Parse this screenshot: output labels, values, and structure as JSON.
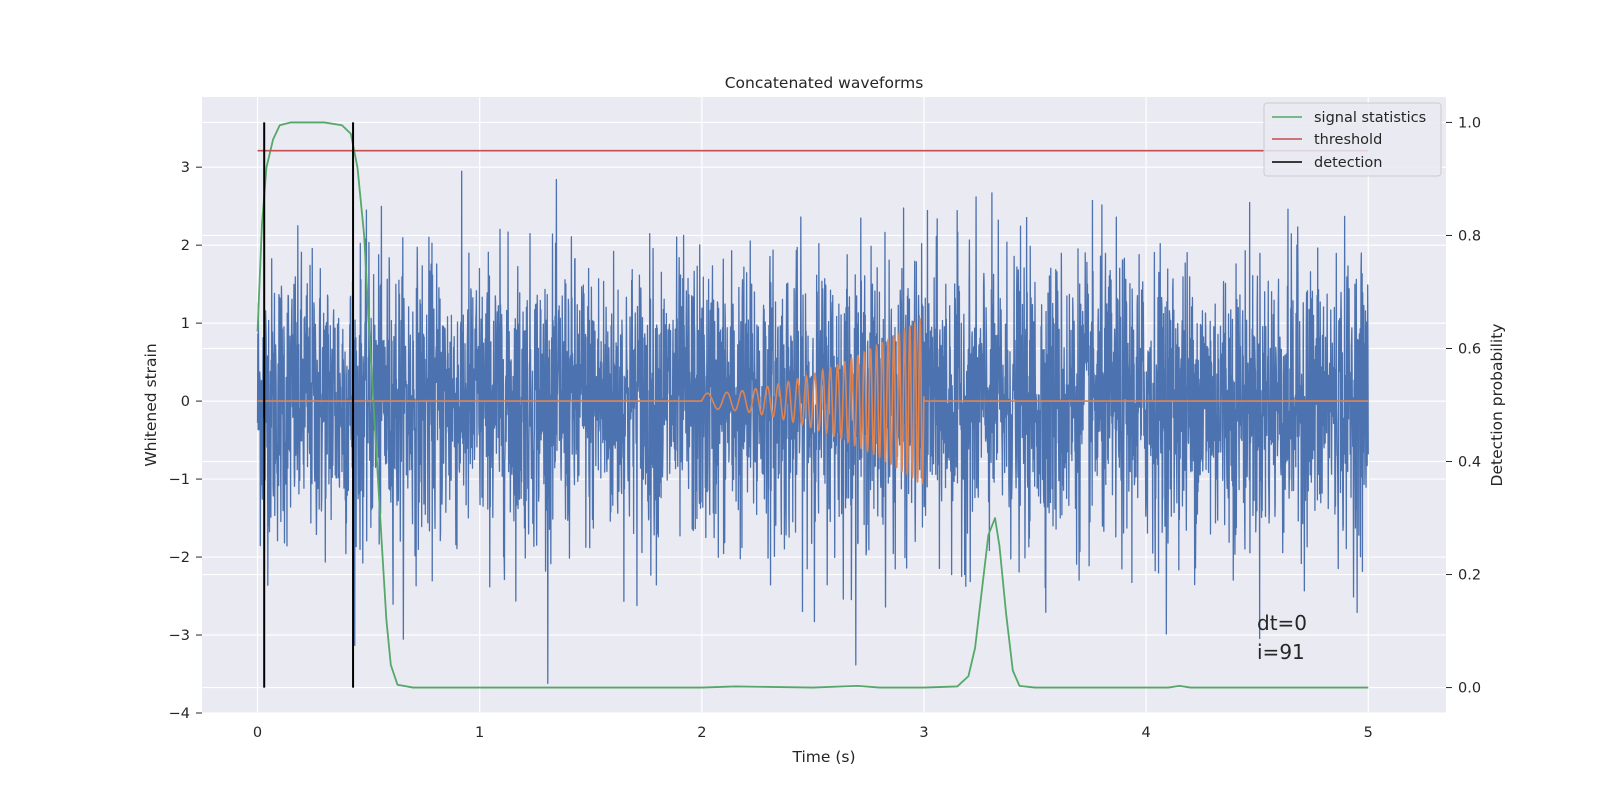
{
  "chart_data": {
    "type": "line",
    "title": "Concatenated waveforms",
    "xlabel": "Time (s)",
    "ylabel": "Whitened strain",
    "y2label": "Detection probability",
    "xlim": [
      -0.25,
      5.35
    ],
    "ylim": [
      -4.0,
      3.9
    ],
    "y2lim": [
      -0.045,
      1.045
    ],
    "xticks": [
      0,
      1,
      2,
      3,
      4,
      5
    ],
    "yticks": [
      3,
      2,
      1,
      0,
      -1,
      -2,
      -3,
      -4
    ],
    "y2ticks": [
      1.0,
      0.8,
      0.6,
      0.4,
      0.2,
      0.0
    ],
    "grid": true,
    "legend_position": "top-right",
    "series": [
      {
        "name": "",
        "kind": "whitened-strain-noise",
        "color": "#4c72b0",
        "x_start": 0.0,
        "x_end": 5.0,
        "std": 0.9
      },
      {
        "name": "",
        "kind": "injected-chirp",
        "color": "#dd8452",
        "x_start": 2.0,
        "x_end": 3.0,
        "start_amplitude": 0.1,
        "end_amplitude": 1.1,
        "start_cycles_per_s": 9,
        "end_cycles_per_s": 45
      },
      {
        "name": "signal statistics",
        "axis": "y2",
        "color": "#55a868",
        "x": [
          0.0,
          0.02,
          0.04,
          0.07,
          0.1,
          0.15,
          0.2,
          0.3,
          0.38,
          0.42,
          0.45,
          0.48,
          0.5,
          0.53,
          0.56,
          0.58,
          0.6,
          0.63,
          0.7,
          1.0,
          2.0,
          2.15,
          2.5,
          2.7,
          2.8,
          3.0,
          3.15,
          3.2,
          3.23,
          3.26,
          3.29,
          3.32,
          3.34,
          3.37,
          3.4,
          3.43,
          3.5,
          4.1,
          4.15,
          4.2,
          5.0
        ],
        "y": [
          0.63,
          0.82,
          0.92,
          0.97,
          0.995,
          1.0,
          1.0,
          1.0,
          0.995,
          0.98,
          0.92,
          0.8,
          0.65,
          0.45,
          0.25,
          0.12,
          0.04,
          0.005,
          0.0,
          0.0,
          0.0,
          0.002,
          0.0,
          0.003,
          0.0,
          0.0,
          0.002,
          0.02,
          0.07,
          0.17,
          0.27,
          0.3,
          0.25,
          0.13,
          0.03,
          0.003,
          0.0,
          0.0,
          0.003,
          0.0,
          0.0
        ]
      },
      {
        "name": "threshold",
        "axis": "y2",
        "color": "#c44e52",
        "x": [
          0.0,
          5.0
        ],
        "y": [
          0.95,
          0.95
        ]
      }
    ],
    "detections": {
      "name": "detection",
      "color": "#000000",
      "x": [
        0.03,
        0.43
      ],
      "y2_range": [
        0.0,
        1.0
      ]
    },
    "legend": [
      {
        "label": "signal statistics",
        "color": "#55a868"
      },
      {
        "label": "threshold",
        "color": "#c44e52"
      },
      {
        "label": "detection",
        "color": "#000000"
      }
    ],
    "annotations": [
      {
        "text": "dt=0",
        "x": 4.5,
        "y": -2.85
      },
      {
        "text": "i=91",
        "x": 4.5,
        "y": -3.2
      }
    ]
  }
}
